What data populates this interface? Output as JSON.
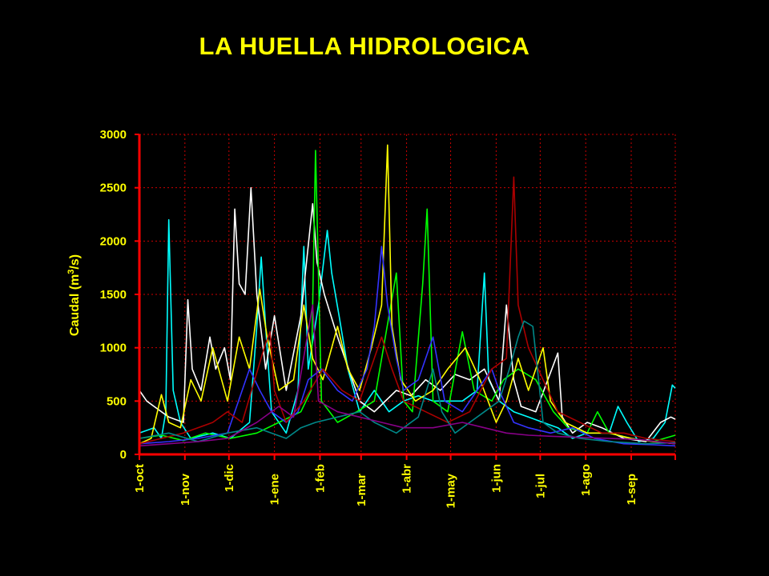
{
  "title": "LA HUELLA HIDROLOGICA",
  "chart_data": {
    "type": "line",
    "ylabel_main": "Caudal (m",
    "ylabel_sup": "3",
    "ylabel_end": "/s)",
    "ylim": [
      0,
      3000
    ],
    "yticks": [
      0,
      500,
      1000,
      1500,
      2000,
      2500,
      3000
    ],
    "xlim": [
      0,
      365
    ],
    "xticks": [
      {
        "label": "1-oct",
        "day": 0
      },
      {
        "label": "1-nov",
        "day": 31
      },
      {
        "label": "1-dic",
        "day": 61
      },
      {
        "label": "1-ene",
        "day": 92
      },
      {
        "label": "1-feb",
        "day": 123
      },
      {
        "label": "1-mar",
        "day": 151
      },
      {
        "label": "1-abr",
        "day": 182
      },
      {
        "label": "1-may",
        "day": 212
      },
      {
        "label": "1-jun",
        "day": 243
      },
      {
        "label": "1-jul",
        "day": 273
      },
      {
        "label": "1-ago",
        "day": 304
      },
      {
        "label": "1-sep",
        "day": 335
      }
    ],
    "grid": true,
    "axis_color": "#ff0000",
    "grid_color": "#cc0000",
    "series": [
      {
        "color": "#00ffff",
        "points": [
          [
            0,
            200
          ],
          [
            10,
            250
          ],
          [
            15,
            150
          ],
          [
            18,
            400
          ],
          [
            20,
            2200
          ],
          [
            23,
            600
          ],
          [
            28,
            300
          ],
          [
            35,
            150
          ],
          [
            50,
            200
          ],
          [
            62,
            150
          ],
          [
            75,
            300
          ],
          [
            80,
            1200
          ],
          [
            83,
            1850
          ],
          [
            86,
            1200
          ],
          [
            90,
            400
          ],
          [
            100,
            200
          ],
          [
            108,
            600
          ],
          [
            112,
            1950
          ],
          [
            115,
            800
          ],
          [
            122,
            1400
          ],
          [
            128,
            2100
          ],
          [
            131,
            1700
          ],
          [
            136,
            1300
          ],
          [
            142,
            800
          ],
          [
            150,
            400
          ],
          [
            160,
            600
          ],
          [
            170,
            400
          ],
          [
            180,
            500
          ],
          [
            190,
            550
          ],
          [
            200,
            500
          ],
          [
            220,
            500
          ],
          [
            230,
            600
          ],
          [
            235,
            1700
          ],
          [
            238,
            700
          ],
          [
            245,
            500
          ],
          [
            255,
            400
          ],
          [
            265,
            350
          ],
          [
            275,
            300
          ],
          [
            285,
            250
          ],
          [
            295,
            150
          ],
          [
            305,
            200
          ],
          [
            320,
            200
          ],
          [
            326,
            450
          ],
          [
            332,
            300
          ],
          [
            340,
            120
          ],
          [
            350,
            150
          ],
          [
            358,
            300
          ],
          [
            363,
            650
          ],
          [
            365,
            620
          ]
        ]
      },
      {
        "color": "#ffffff",
        "points": [
          [
            0,
            600
          ],
          [
            5,
            500
          ],
          [
            10,
            450
          ],
          [
            20,
            350
          ],
          [
            30,
            300
          ],
          [
            33,
            1450
          ],
          [
            36,
            800
          ],
          [
            42,
            600
          ],
          [
            48,
            1100
          ],
          [
            52,
            800
          ],
          [
            58,
            1000
          ],
          [
            62,
            700
          ],
          [
            65,
            2300
          ],
          [
            68,
            1600
          ],
          [
            72,
            1500
          ],
          [
            76,
            2500
          ],
          [
            80,
            1500
          ],
          [
            86,
            800
          ],
          [
            92,
            1300
          ],
          [
            100,
            600
          ],
          [
            110,
            1300
          ],
          [
            118,
            2350
          ],
          [
            121,
            1800
          ],
          [
            126,
            1500
          ],
          [
            135,
            1100
          ],
          [
            145,
            700
          ],
          [
            150,
            500
          ],
          [
            160,
            400
          ],
          [
            175,
            600
          ],
          [
            185,
            550
          ],
          [
            195,
            700
          ],
          [
            205,
            600
          ],
          [
            215,
            750
          ],
          [
            225,
            700
          ],
          [
            235,
            800
          ],
          [
            240,
            650
          ],
          [
            245,
            500
          ],
          [
            250,
            1400
          ],
          [
            255,
            700
          ],
          [
            260,
            450
          ],
          [
            270,
            400
          ],
          [
            285,
            950
          ],
          [
            288,
            350
          ],
          [
            295,
            200
          ],
          [
            305,
            300
          ],
          [
            315,
            250
          ],
          [
            330,
            150
          ],
          [
            345,
            120
          ],
          [
            355,
            300
          ],
          [
            362,
            350
          ],
          [
            365,
            330
          ]
        ]
      },
      {
        "color": "#00ff00",
        "points": [
          [
            0,
            150
          ],
          [
            15,
            180
          ],
          [
            30,
            130
          ],
          [
            45,
            200
          ],
          [
            62,
            150
          ],
          [
            80,
            200
          ],
          [
            95,
            300
          ],
          [
            110,
            400
          ],
          [
            117,
            600
          ],
          [
            120,
            2850
          ],
          [
            124,
            500
          ],
          [
            135,
            300
          ],
          [
            148,
            400
          ],
          [
            160,
            500
          ],
          [
            170,
            1300
          ],
          [
            175,
            1700
          ],
          [
            180,
            500
          ],
          [
            186,
            400
          ],
          [
            193,
            1600
          ],
          [
            196,
            2300
          ],
          [
            200,
            500
          ],
          [
            210,
            400
          ],
          [
            220,
            1150
          ],
          [
            228,
            600
          ],
          [
            240,
            500
          ],
          [
            248,
            700
          ],
          [
            258,
            800
          ],
          [
            270,
            700
          ],
          [
            282,
            400
          ],
          [
            292,
            250
          ],
          [
            305,
            200
          ],
          [
            312,
            400
          ],
          [
            320,
            200
          ],
          [
            335,
            150
          ],
          [
            350,
            120
          ],
          [
            365,
            180
          ]
        ]
      },
      {
        "color": "#ffff00",
        "points": [
          [
            0,
            100
          ],
          [
            8,
            150
          ],
          [
            15,
            560
          ],
          [
            20,
            300
          ],
          [
            28,
            250
          ],
          [
            35,
            700
          ],
          [
            42,
            500
          ],
          [
            50,
            1000
          ],
          [
            60,
            500
          ],
          [
            68,
            1100
          ],
          [
            75,
            800
          ],
          [
            82,
            1550
          ],
          [
            87,
            1100
          ],
          [
            95,
            600
          ],
          [
            105,
            700
          ],
          [
            112,
            1400
          ],
          [
            118,
            900
          ],
          [
            125,
            700
          ],
          [
            135,
            1200
          ],
          [
            142,
            800
          ],
          [
            150,
            600
          ],
          [
            158,
            1000
          ],
          [
            165,
            1400
          ],
          [
            169,
            2900
          ],
          [
            172,
            1200
          ],
          [
            178,
            700
          ],
          [
            188,
            500
          ],
          [
            200,
            600
          ],
          [
            210,
            800
          ],
          [
            222,
            1000
          ],
          [
            232,
            700
          ],
          [
            243,
            300
          ],
          [
            250,
            500
          ],
          [
            258,
            900
          ],
          [
            265,
            600
          ],
          [
            275,
            1000
          ],
          [
            280,
            500
          ],
          [
            290,
            300
          ],
          [
            305,
            200
          ],
          [
            320,
            200
          ],
          [
            335,
            150
          ],
          [
            350,
            120
          ],
          [
            365,
            100
          ]
        ]
      },
      {
        "color": "#3333ff",
        "points": [
          [
            0,
            100
          ],
          [
            20,
            120
          ],
          [
            40,
            150
          ],
          [
            60,
            200
          ],
          [
            75,
            800
          ],
          [
            82,
            600
          ],
          [
            90,
            400
          ],
          [
            100,
            300
          ],
          [
            108,
            400
          ],
          [
            115,
            700
          ],
          [
            124,
            800
          ],
          [
            135,
            600
          ],
          [
            145,
            500
          ],
          [
            155,
            800
          ],
          [
            160,
            1200
          ],
          [
            165,
            1950
          ],
          [
            169,
            1400
          ],
          [
            175,
            900
          ],
          [
            180,
            600
          ],
          [
            190,
            700
          ],
          [
            200,
            1100
          ],
          [
            208,
            500
          ],
          [
            220,
            400
          ],
          [
            230,
            600
          ],
          [
            240,
            800
          ],
          [
            245,
            600
          ],
          [
            255,
            300
          ],
          [
            265,
            250
          ],
          [
            280,
            200
          ],
          [
            295,
            250
          ],
          [
            310,
            150
          ],
          [
            330,
            100
          ],
          [
            350,
            90
          ],
          [
            365,
            80
          ]
        ]
      },
      {
        "color": "#aa0000",
        "points": [
          [
            0,
            100
          ],
          [
            15,
            150
          ],
          [
            30,
            200
          ],
          [
            50,
            300
          ],
          [
            60,
            400
          ],
          [
            70,
            300
          ],
          [
            85,
            1000
          ],
          [
            89,
            1150
          ],
          [
            92,
            600
          ],
          [
            100,
            300
          ],
          [
            112,
            500
          ],
          [
            125,
            800
          ],
          [
            138,
            600
          ],
          [
            150,
            500
          ],
          [
            165,
            1100
          ],
          [
            172,
            800
          ],
          [
            180,
            500
          ],
          [
            195,
            400
          ],
          [
            210,
            300
          ],
          [
            225,
            400
          ],
          [
            240,
            800
          ],
          [
            250,
            900
          ],
          [
            255,
            2600
          ],
          [
            258,
            1400
          ],
          [
            265,
            1000
          ],
          [
            275,
            700
          ],
          [
            285,
            400
          ],
          [
            300,
            300
          ],
          [
            315,
            200
          ],
          [
            330,
            200
          ],
          [
            345,
            150
          ],
          [
            365,
            120
          ]
        ]
      },
      {
        "color": "#008888",
        "points": [
          [
            0,
            150
          ],
          [
            20,
            200
          ],
          [
            40,
            120
          ],
          [
            60,
            200
          ],
          [
            80,
            250
          ],
          [
            100,
            150
          ],
          [
            110,
            250
          ],
          [
            120,
            300
          ],
          [
            135,
            350
          ],
          [
            150,
            400
          ],
          [
            160,
            300
          ],
          [
            175,
            200
          ],
          [
            190,
            350
          ],
          [
            200,
            800
          ],
          [
            206,
            400
          ],
          [
            215,
            200
          ],
          [
            225,
            300
          ],
          [
            235,
            400
          ],
          [
            245,
            500
          ],
          [
            252,
            800
          ],
          [
            258,
            1100
          ],
          [
            262,
            1250
          ],
          [
            268,
            1200
          ],
          [
            275,
            300
          ],
          [
            285,
            200
          ],
          [
            300,
            150
          ],
          [
            320,
            120
          ],
          [
            345,
            100
          ],
          [
            365,
            110
          ]
        ]
      },
      {
        "color": "#880088",
        "points": [
          [
            0,
            80
          ],
          [
            20,
            100
          ],
          [
            40,
            120
          ],
          [
            60,
            150
          ],
          [
            80,
            300
          ],
          [
            95,
            450
          ],
          [
            105,
            350
          ],
          [
            118,
            1400
          ],
          [
            122,
            500
          ],
          [
            135,
            400
          ],
          [
            150,
            350
          ],
          [
            165,
            300
          ],
          [
            180,
            250
          ],
          [
            200,
            250
          ],
          [
            220,
            300
          ],
          [
            235,
            250
          ],
          [
            250,
            200
          ],
          [
            265,
            180
          ],
          [
            280,
            170
          ],
          [
            300,
            160
          ],
          [
            320,
            150
          ],
          [
            340,
            140
          ],
          [
            365,
            100
          ]
        ]
      }
    ]
  }
}
